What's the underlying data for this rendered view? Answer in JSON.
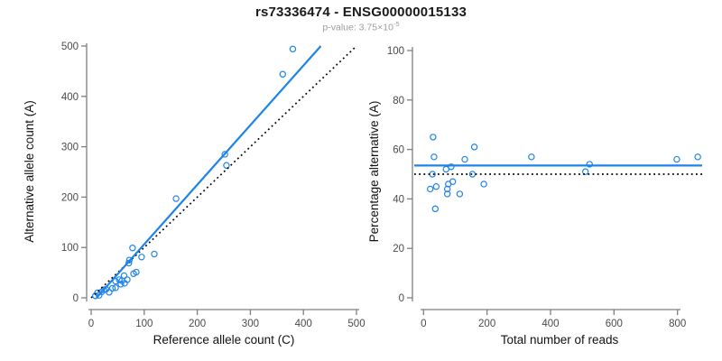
{
  "header": {
    "title": "rs73336474 - ENSG00000015133",
    "subtitle_prefix": "p-value: 3.75×10",
    "subtitle_exponent": "-5"
  },
  "colors": {
    "accent_blue": "#1e84e8",
    "line_black": "#000000",
    "axis_gray": "#7f7f7f",
    "tick_text": "#4a4a4a",
    "subtitle_gray": "#9c9c9c"
  },
  "chart_data": [
    {
      "type": "scatter",
      "xlabel": "Reference allele count (C)",
      "ylabel": "Alternative allele count (A)",
      "xlim": [
        0,
        500
      ],
      "ylim": [
        0,
        500
      ],
      "xticks": [
        0,
        100,
        200,
        300,
        400,
        500
      ],
      "yticks": [
        0,
        100,
        200,
        300,
        400,
        500
      ],
      "grid": false,
      "legend": "none",
      "point_color": "#1e84e8",
      "points": [
        [
          8,
          4
        ],
        [
          12,
          10
        ],
        [
          15,
          5
        ],
        [
          20,
          12
        ],
        [
          24,
          16
        ],
        [
          28,
          17
        ],
        [
          34,
          11
        ],
        [
          40,
          19
        ],
        [
          46,
          20
        ],
        [
          46,
          33
        ],
        [
          53,
          36
        ],
        [
          56,
          27
        ],
        [
          58,
          34
        ],
        [
          62,
          44
        ],
        [
          63,
          29
        ],
        [
          68,
          36
        ],
        [
          71,
          69
        ],
        [
          72,
          75
        ],
        [
          78,
          99
        ],
        [
          80,
          48
        ],
        [
          85,
          51
        ],
        [
          95,
          81
        ],
        [
          119,
          87
        ],
        [
          160,
          197
        ],
        [
          252,
          285
        ],
        [
          255,
          263
        ],
        [
          361,
          444
        ],
        [
          380,
          494
        ]
      ],
      "lines": [
        {
          "name": "identity",
          "style": "dotted",
          "color": "#000000",
          "slope": 1,
          "intercept": 0
        },
        {
          "name": "regression",
          "style": "solid",
          "color": "#1e84e8",
          "slope": 1.183,
          "intercept": -12
        }
      ]
    },
    {
      "type": "scatter",
      "xlabel": "Total number of reads",
      "ylabel": "Percentage alternative (A)",
      "xlim": [
        0,
        870
      ],
      "ylim": [
        0,
        100
      ],
      "xticks": [
        0,
        200,
        400,
        600,
        800
      ],
      "yticks": [
        0,
        20,
        40,
        60,
        80,
        100
      ],
      "grid": false,
      "legend": "none",
      "point_color": "#1e84e8",
      "points": [
        [
          21,
          44
        ],
        [
          28,
          50
        ],
        [
          30,
          65
        ],
        [
          33,
          57
        ],
        [
          37,
          36
        ],
        [
          40,
          45
        ],
        [
          71,
          52
        ],
        [
          75,
          44
        ],
        [
          75,
          42
        ],
        [
          78,
          46
        ],
        [
          87,
          53
        ],
        [
          92,
          47
        ],
        [
          114,
          42
        ],
        [
          130,
          56
        ],
        [
          154,
          50
        ],
        [
          160,
          61
        ],
        [
          190,
          46
        ],
        [
          340,
          57
        ],
        [
          510,
          51
        ],
        [
          523,
          54
        ],
        [
          798,
          56
        ],
        [
          864,
          57
        ]
      ],
      "lines": [
        {
          "name": "null-50pct",
          "style": "dotted",
          "color": "#000000",
          "slope": 0,
          "intercept": 50
        },
        {
          "name": "mean-percentage",
          "style": "solid",
          "color": "#1e84e8",
          "slope": 0,
          "intercept": 53.5
        }
      ]
    }
  ]
}
